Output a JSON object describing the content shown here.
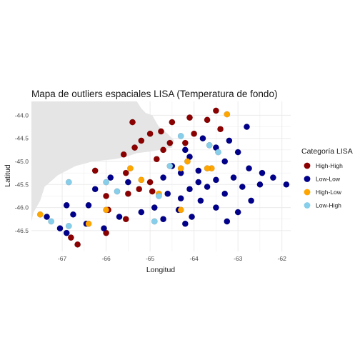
{
  "chart_data": {
    "type": "scatter",
    "title": "Mapa de outliers espaciales LISA (Temperatura de fondo)",
    "xlabel": "Longitud",
    "ylabel": "Latitud",
    "xlim": [
      -67.7,
      -61.8
    ],
    "ylim": [
      -46.95,
      -43.7
    ],
    "xticks": [
      -67,
      -66,
      -65,
      -64,
      -63,
      -62
    ],
    "yticks": [
      -44.0,
      -44.5,
      -45.0,
      -45.5,
      -46.0,
      -46.5
    ],
    "xtick_labels": [
      "-67",
      "-66",
      "-65",
      "-64",
      "-63",
      "-62"
    ],
    "ytick_labels": [
      "-44.0",
      "-44.5",
      "-45.0",
      "-45.5",
      "-46.0",
      "-46.5"
    ],
    "grid": true,
    "legend_title": "Categoría LISA",
    "legend_position": "right",
    "land_color": "#e5e5e5",
    "land_outline": [
      [
        -65.62,
        -43.7
      ],
      [
        -65.3,
        -43.7
      ],
      [
        -65.2,
        -43.85
      ],
      [
        -65.1,
        -43.95
      ],
      [
        -64.95,
        -44.0
      ],
      [
        -64.8,
        -44.25
      ],
      [
        -64.6,
        -44.4
      ],
      [
        -64.45,
        -44.55
      ],
      [
        -64.5,
        -44.7
      ],
      [
        -64.95,
        -44.78
      ],
      [
        -65.3,
        -44.82
      ],
      [
        -65.55,
        -44.9
      ],
      [
        -65.8,
        -44.95
      ],
      [
        -66.3,
        -45.0
      ],
      [
        -66.7,
        -45.1
      ],
      [
        -67.1,
        -45.3
      ],
      [
        -67.4,
        -45.55
      ],
      [
        -67.5,
        -45.85
      ],
      [
        -67.65,
        -46.1
      ],
      [
        -67.7,
        -46.3
      ]
    ],
    "series": [
      {
        "name": "High-High",
        "color": "#8b0000",
        "points": [
          [
            -63.5,
            -43.9
          ],
          [
            -64.1,
            -44.05
          ],
          [
            -63.7,
            -44.1
          ],
          [
            -64.5,
            -44.15
          ],
          [
            -65.4,
            -44.15
          ],
          [
            -63.4,
            -44.3
          ],
          [
            -64.75,
            -44.35
          ],
          [
            -65.0,
            -44.4
          ],
          [
            -64.0,
            -44.4
          ],
          [
            -65.2,
            -44.55
          ],
          [
            -64.2,
            -44.6
          ],
          [
            -64.55,
            -44.6
          ],
          [
            -65.35,
            -44.7
          ],
          [
            -64.7,
            -44.75
          ],
          [
            -65.6,
            -44.85
          ],
          [
            -64.85,
            -44.95
          ],
          [
            -66.25,
            -45.2
          ],
          [
            -65.55,
            -45.25
          ],
          [
            -65.0,
            -45.45
          ],
          [
            -65.25,
            -45.6
          ],
          [
            -65.5,
            -45.7
          ],
          [
            -64.95,
            -45.65
          ],
          [
            -66.0,
            -45.75
          ],
          [
            -65.95,
            -46.05
          ],
          [
            -65.55,
            -46.25
          ],
          [
            -66.0,
            -46.55
          ],
          [
            -66.8,
            -46.65
          ],
          [
            -66.65,
            -46.8
          ]
        ]
      },
      {
        "name": "Low-Low",
        "color": "#00008b",
        "points": [
          [
            -62.8,
            -44.25
          ],
          [
            -63.8,
            -44.5
          ],
          [
            -63.2,
            -44.55
          ],
          [
            -63.5,
            -44.7
          ],
          [
            -64.2,
            -44.75
          ],
          [
            -63.0,
            -44.8
          ],
          [
            -64.1,
            -44.9
          ],
          [
            -63.3,
            -45.0
          ],
          [
            -64.5,
            -45.1
          ],
          [
            -62.75,
            -45.15
          ],
          [
            -63.9,
            -45.2
          ],
          [
            -64.3,
            -45.25
          ],
          [
            -62.45,
            -45.25
          ],
          [
            -62.2,
            -45.35
          ],
          [
            -64.7,
            -45.35
          ],
          [
            -63.1,
            -45.35
          ],
          [
            -63.5,
            -45.4
          ],
          [
            -63.9,
            -45.45
          ],
          [
            -62.5,
            -45.5
          ],
          [
            -64.1,
            -45.6
          ],
          [
            -65.9,
            -45.35
          ],
          [
            -63.7,
            -45.55
          ],
          [
            -61.9,
            -45.5
          ],
          [
            -62.9,
            -45.55
          ],
          [
            -63.3,
            -45.7
          ],
          [
            -64.6,
            -45.7
          ],
          [
            -65.5,
            -45.45
          ],
          [
            -66.25,
            -45.6
          ],
          [
            -64.3,
            -45.8
          ],
          [
            -62.7,
            -45.85
          ],
          [
            -63.85,
            -45.85
          ],
          [
            -66.9,
            -45.95
          ],
          [
            -64.9,
            -46.0
          ],
          [
            -66.4,
            -45.95
          ],
          [
            -63.5,
            -46.0
          ],
          [
            -64.35,
            -46.05
          ],
          [
            -63.0,
            -46.1
          ],
          [
            -65.2,
            -46.1
          ],
          [
            -66.75,
            -46.15
          ],
          [
            -64.05,
            -46.2
          ],
          [
            -65.7,
            -46.2
          ],
          [
            -64.7,
            -46.25
          ],
          [
            -63.25,
            -46.3
          ],
          [
            -67.35,
            -46.2
          ],
          [
            -66.45,
            -46.35
          ],
          [
            -64.2,
            -46.35
          ],
          [
            -67.05,
            -46.45
          ],
          [
            -66.05,
            -46.45
          ],
          [
            -66.9,
            -46.55
          ]
        ]
      },
      {
        "name": "High-Low",
        "color": "#ffa500",
        "points": [
          [
            -63.25,
            -43.98
          ],
          [
            -64.15,
            -45.0
          ],
          [
            -64.3,
            -45.15
          ],
          [
            -63.6,
            -45.15
          ],
          [
            -65.45,
            -45.15
          ],
          [
            -65.2,
            -45.4
          ],
          [
            -64.3,
            -46.05
          ],
          [
            -66.0,
            -46.05
          ],
          [
            -66.4,
            -46.35
          ],
          [
            -67.5,
            -46.15
          ],
          [
            -64.8,
            -45.7
          ],
          [
            -63.7,
            -45.15
          ]
        ]
      },
      {
        "name": "Low-High",
        "color": "#87ceeb",
        "points": [
          [
            -64.3,
            -44.45
          ],
          [
            -63.65,
            -44.65
          ],
          [
            -63.45,
            -44.8
          ],
          [
            -64.55,
            -45.1
          ],
          [
            -66.0,
            -45.45
          ],
          [
            -65.75,
            -45.65
          ],
          [
            -64.8,
            -45.75
          ],
          [
            -66.85,
            -45.45
          ],
          [
            -64.9,
            -46.3
          ],
          [
            -67.25,
            -46.3
          ],
          [
            -66.85,
            -46.4
          ]
        ]
      }
    ]
  }
}
